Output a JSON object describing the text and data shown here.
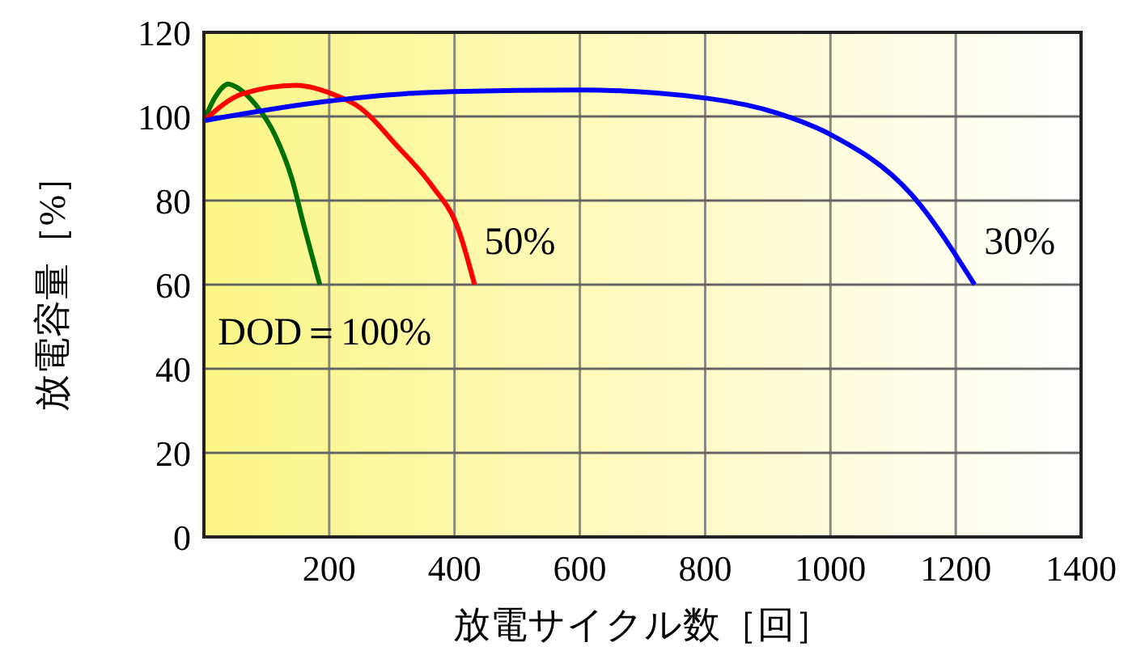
{
  "chart_data": {
    "type": "line",
    "xlabel": "放電サイクル数［回］",
    "ylabel": "放電容量［%］",
    "xlim": [
      0,
      1400
    ],
    "xticks": [
      200,
      400,
      600,
      800,
      1000,
      1200,
      1400
    ],
    "ylim": [
      0,
      120
    ],
    "yticks": [
      0,
      20,
      40,
      60,
      80,
      100,
      120
    ],
    "grid": true,
    "marker": "none",
    "line_style": "solid",
    "series": [
      {
        "name": "DOD＝100%",
        "color": "#007000",
        "x": [
          0,
          18,
          39,
          57,
          83,
          114,
          140,
          160,
          185
        ],
        "values": [
          99,
          104.6,
          107.7,
          106.5,
          102.7,
          95.4,
          85.4,
          73.8,
          60
        ]
      },
      {
        "name": "50%",
        "color": "#ff0000",
        "x": [
          0,
          62,
          147,
          217,
          243,
          312,
          364,
          406,
          432
        ],
        "values": [
          99,
          105.4,
          107.4,
          104.6,
          102.7,
          92.4,
          83.5,
          73.2,
          60
        ]
      },
      {
        "name": "30%",
        "color": "#0000ff",
        "x": [
          0,
          191,
          320,
          398,
          600,
          804,
          915,
          1000,
          1129,
          1230
        ],
        "values": [
          99,
          103.5,
          105.4,
          105.9,
          106.3,
          104.3,
          100.8,
          95.7,
          81.5,
          60
        ]
      }
    ]
  }
}
